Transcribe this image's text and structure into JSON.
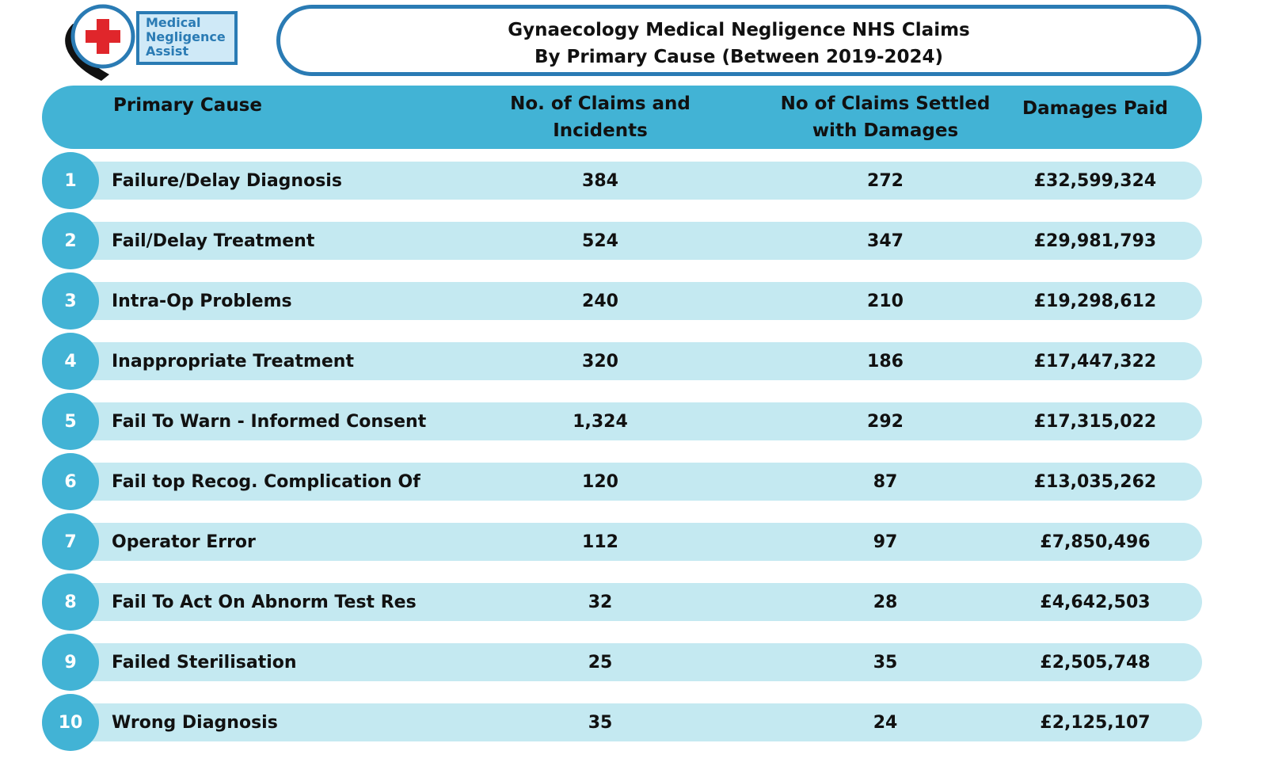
{
  "logo": {
    "lines": [
      "Medical",
      "Negligence",
      "Assist"
    ]
  },
  "title": {
    "line1": "Gynaecology Medical Negligence NHS Claims",
    "line2": "By Primary Cause (Between 2019-2024)"
  },
  "colors": {
    "header": "#42b3d5",
    "row_bar": "#c4e9f1",
    "number_circle": "#42b3d5",
    "title_border": "#2a7bb4",
    "logo_blue": "#2a7bb4",
    "logo_red": "#e0262b"
  },
  "chart_data": {
    "type": "table",
    "title": "Gynaecology Medical Negligence NHS Claims By Primary Cause (Between 2019-2024)",
    "columns": [
      "Primary Cause",
      "No. of Claims and Incidents",
      "No of Claims Settled with Damages",
      "Damages Paid"
    ],
    "header_lines": {
      "cause": [
        "Primary Cause"
      ],
      "claims": [
        "No. of Claims and",
        "Incidents"
      ],
      "settled": [
        "No of Claims Settled",
        "with Damages"
      ],
      "damages": [
        "Damages Paid"
      ]
    },
    "rows": [
      {
        "num": "1",
        "cause": "Failure/Delay Diagnosis",
        "claims": "384",
        "settled": "272",
        "damages": "£32,599,324"
      },
      {
        "num": "2",
        "cause": "Fail/Delay Treatment",
        "claims": "524",
        "settled": "347",
        "damages": "£29,981,793"
      },
      {
        "num": "3",
        "cause": "Intra-Op Problems",
        "claims": "240",
        "settled": "210",
        "damages": "£19,298,612"
      },
      {
        "num": "4",
        "cause": "Inappropriate Treatment",
        "claims": "320",
        "settled": "186",
        "damages": "£17,447,322"
      },
      {
        "num": "5",
        "cause": "Fail To Warn - Informed Consent",
        "claims": "1,324",
        "settled": "292",
        "damages": "£17,315,022"
      },
      {
        "num": "6",
        "cause": "Fail top Recog. Complication Of",
        "claims": "120",
        "settled": "87",
        "damages": "£13,035,262"
      },
      {
        "num": "7",
        "cause": "Operator Error",
        "claims": "112",
        "settled": "97",
        "damages": "£7,850,496"
      },
      {
        "num": "8",
        "cause": "Fail To Act On Abnorm Test Res",
        "claims": "32",
        "settled": "28",
        "damages": "£4,642,503"
      },
      {
        "num": "9",
        "cause": "Failed Sterilisation",
        "claims": "25",
        "settled": "35",
        "damages": "£2,505,748"
      },
      {
        "num": "10",
        "cause": "Wrong Diagnosis",
        "claims": "35",
        "settled": "24",
        "damages": "£2,125,107"
      }
    ]
  }
}
